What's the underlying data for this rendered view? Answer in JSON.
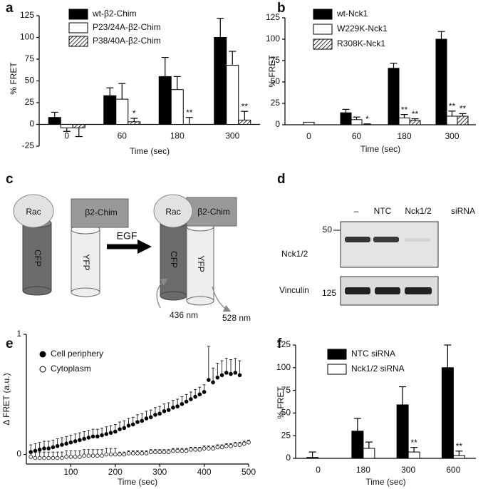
{
  "chart_data": [
    {
      "type": "bar",
      "panel": "a",
      "y_label": "% FRET",
      "x_label": "Time (sec)",
      "categories": [
        "0",
        "60",
        "180",
        "300"
      ],
      "ylim": [
        -25,
        125
      ],
      "yticks": [
        -25,
        0,
        25,
        50,
        75,
        100,
        125
      ],
      "series": [
        {
          "name": "wt-β2-Chim",
          "color": "#000000",
          "values": [
            8,
            33,
            55,
            100
          ],
          "errors": [
            6,
            9,
            22,
            22
          ]
        },
        {
          "name": "P23/24A-β2-Chim",
          "color": "#ffffff",
          "values": [
            -4,
            29,
            40,
            68
          ],
          "errors": [
            4,
            18,
            15,
            16
          ]
        },
        {
          "name": "P38/40A-β2-Chim",
          "color": "#ffffff",
          "hatch": true,
          "values": [
            -4,
            3,
            0,
            5
          ],
          "errors": [
            10,
            4,
            8,
            10
          ],
          "significance": [
            null,
            "*",
            "**",
            "**"
          ]
        }
      ]
    },
    {
      "type": "bar",
      "panel": "b",
      "y_label": "% FRET",
      "x_label": "Time (sec)",
      "categories": [
        "0",
        "60",
        "180",
        "300"
      ],
      "ylim": [
        0,
        125
      ],
      "yticks": [
        0,
        25,
        50,
        75,
        100,
        125
      ],
      "series": [
        {
          "name": "wt-Nck1",
          "color": "#000000",
          "values": [
            0,
            14,
            66,
            100
          ],
          "errors": [
            null,
            4,
            6,
            9
          ]
        },
        {
          "name": "W229K-Nck1",
          "color": "#ffffff",
          "values": [
            3,
            6,
            8,
            10
          ],
          "errors": [
            null,
            3,
            4,
            6
          ],
          "significance": [
            null,
            null,
            "**",
            "**"
          ]
        },
        {
          "name": "R308K-Nck1",
          "color": "#ffffff",
          "hatch": true,
          "values": [
            0,
            0,
            5,
            10
          ],
          "errors": [
            null,
            1,
            2,
            3
          ],
          "significance": [
            null,
            "*",
            "**",
            "**"
          ]
        }
      ]
    },
    {
      "type": "scatter",
      "panel": "e",
      "y_label": "Δ FRET (a.u.)",
      "x_label": "Time (sec)",
      "xlim": [
        0,
        500
      ],
      "xticks": [
        100,
        200,
        300,
        400,
        500
      ],
      "ylim": [
        -0.08,
        1
      ],
      "yticks": [
        0,
        1
      ],
      "series": [
        {
          "name": "Cell periphery",
          "marker": "filled",
          "color": "#000000",
          "x": [
            10,
            20,
            30,
            40,
            50,
            60,
            70,
            80,
            90,
            100,
            110,
            120,
            130,
            140,
            150,
            160,
            170,
            180,
            190,
            200,
            210,
            220,
            230,
            240,
            250,
            260,
            270,
            280,
            290,
            300,
            310,
            320,
            330,
            340,
            350,
            360,
            370,
            380,
            390,
            400,
            410,
            420,
            430,
            440,
            450,
            460,
            470,
            480
          ],
          "values": [
            0.02,
            0.03,
            0.04,
            0.05,
            0.05,
            0.06,
            0.07,
            0.08,
            0.09,
            0.1,
            0.11,
            0.12,
            0.13,
            0.14,
            0.15,
            0.15,
            0.16,
            0.17,
            0.18,
            0.19,
            0.21,
            0.22,
            0.24,
            0.25,
            0.27,
            0.28,
            0.3,
            0.31,
            0.33,
            0.34,
            0.36,
            0.37,
            0.39,
            0.4,
            0.42,
            0.44,
            0.46,
            0.48,
            0.5,
            0.52,
            0.62,
            0.6,
            0.64,
            0.66,
            0.68,
            0.67,
            0.68,
            0.66
          ],
          "errors": [
            0.06,
            0.06,
            0.06,
            0.06,
            0.06,
            0.06,
            0.06,
            0.06,
            0.06,
            0.06,
            0.06,
            0.06,
            0.06,
            0.06,
            0.06,
            0.06,
            0.06,
            0.06,
            0.06,
            0.06,
            0.06,
            0.06,
            0.06,
            0.06,
            0.06,
            0.06,
            0.06,
            0.06,
            0.06,
            0.06,
            0.06,
            0.06,
            0.06,
            0.06,
            0.06,
            0.06,
            0.06,
            0.06,
            0.06,
            0.06,
            0.28,
            0.12,
            0.12,
            0.12,
            0.12,
            0.12,
            0.12,
            0.12
          ]
        },
        {
          "name": "Cytoplasm",
          "marker": "open",
          "color": "#000000",
          "x": [
            10,
            20,
            30,
            40,
            50,
            60,
            70,
            80,
            90,
            100,
            110,
            120,
            130,
            140,
            150,
            160,
            170,
            180,
            190,
            200,
            210,
            220,
            230,
            240,
            250,
            260,
            270,
            280,
            290,
            300,
            310,
            320,
            330,
            340,
            350,
            360,
            370,
            380,
            390,
            400,
            410,
            420,
            430,
            440,
            450,
            460,
            470,
            480,
            490,
            500
          ],
          "values": [
            -0.02,
            -0.03,
            -0.03,
            -0.03,
            -0.03,
            -0.03,
            -0.03,
            -0.03,
            -0.02,
            -0.02,
            -0.02,
            -0.02,
            -0.01,
            -0.01,
            -0.01,
            -0.01,
            -0.01,
            0,
            0,
            0,
            0,
            0,
            0.01,
            0.01,
            0.01,
            0.01,
            0.01,
            0.02,
            0.02,
            0.02,
            0.02,
            0.02,
            0.03,
            0.03,
            0.03,
            0.03,
            0.04,
            0.04,
            0.04,
            0.05,
            0.05,
            0.05,
            0.06,
            0.06,
            0.07,
            0.07,
            0.08,
            0.08,
            0.09,
            0.1
          ],
          "errors": [
            0.05,
            0.05,
            0.05,
            0.05,
            0.05,
            0.05,
            0.05,
            0.05,
            0.05,
            0.05,
            0.05,
            0.05,
            0.05,
            0.05,
            0.05,
            0.05,
            0.05,
            0.05,
            0.05,
            0.05,
            0.02,
            0.02,
            0.02,
            0.02,
            0.02,
            0.02,
            0.02,
            0.02,
            0.02,
            0.02,
            0.02,
            0.02,
            0.02,
            0.02,
            0.02,
            0.02,
            0.02,
            0.02,
            0.02,
            0.02,
            0.02,
            0.02,
            0.02,
            0.02,
            0.02,
            0.02,
            0.02,
            0.02,
            0.02,
            0.02
          ]
        }
      ]
    },
    {
      "type": "bar",
      "panel": "f",
      "y_label": "% FRET",
      "x_label": "Time (sec)",
      "categories": [
        "0",
        "180",
        "300",
        "600"
      ],
      "ylim": [
        0,
        125
      ],
      "yticks": [
        0,
        25,
        50,
        75,
        100,
        125
      ],
      "series": [
        {
          "name": "NTC siRNA",
          "color": "#000000",
          "values": [
            1,
            30,
            59,
            100
          ],
          "errors": [
            6,
            14,
            20,
            25
          ]
        },
        {
          "name": "Nck1/2 siRNA",
          "color": "#ffffff",
          "values": [
            0,
            11,
            7,
            3
          ],
          "errors": [
            null,
            7,
            5,
            5
          ],
          "significance": [
            null,
            null,
            "**",
            "**"
          ]
        }
      ]
    }
  ],
  "diagram": {
    "panel": "c",
    "left_labels": [
      "Rac",
      "β2-Chim",
      "CFP",
      "YFP"
    ],
    "stimulus": "EGF",
    "right_labels": [
      "Rac",
      "β2-Chim",
      "CFP",
      "YFP"
    ],
    "excitation": "436 nm",
    "emission": "528 nm"
  },
  "blot": {
    "panel": "d",
    "lanes": [
      "–",
      "NTC",
      "Nck1/2"
    ],
    "treatment": "siRNA",
    "rows": [
      {
        "label": "Nck1/2",
        "marker": 50
      },
      {
        "label": "Vinculin",
        "marker": 125
      }
    ]
  }
}
